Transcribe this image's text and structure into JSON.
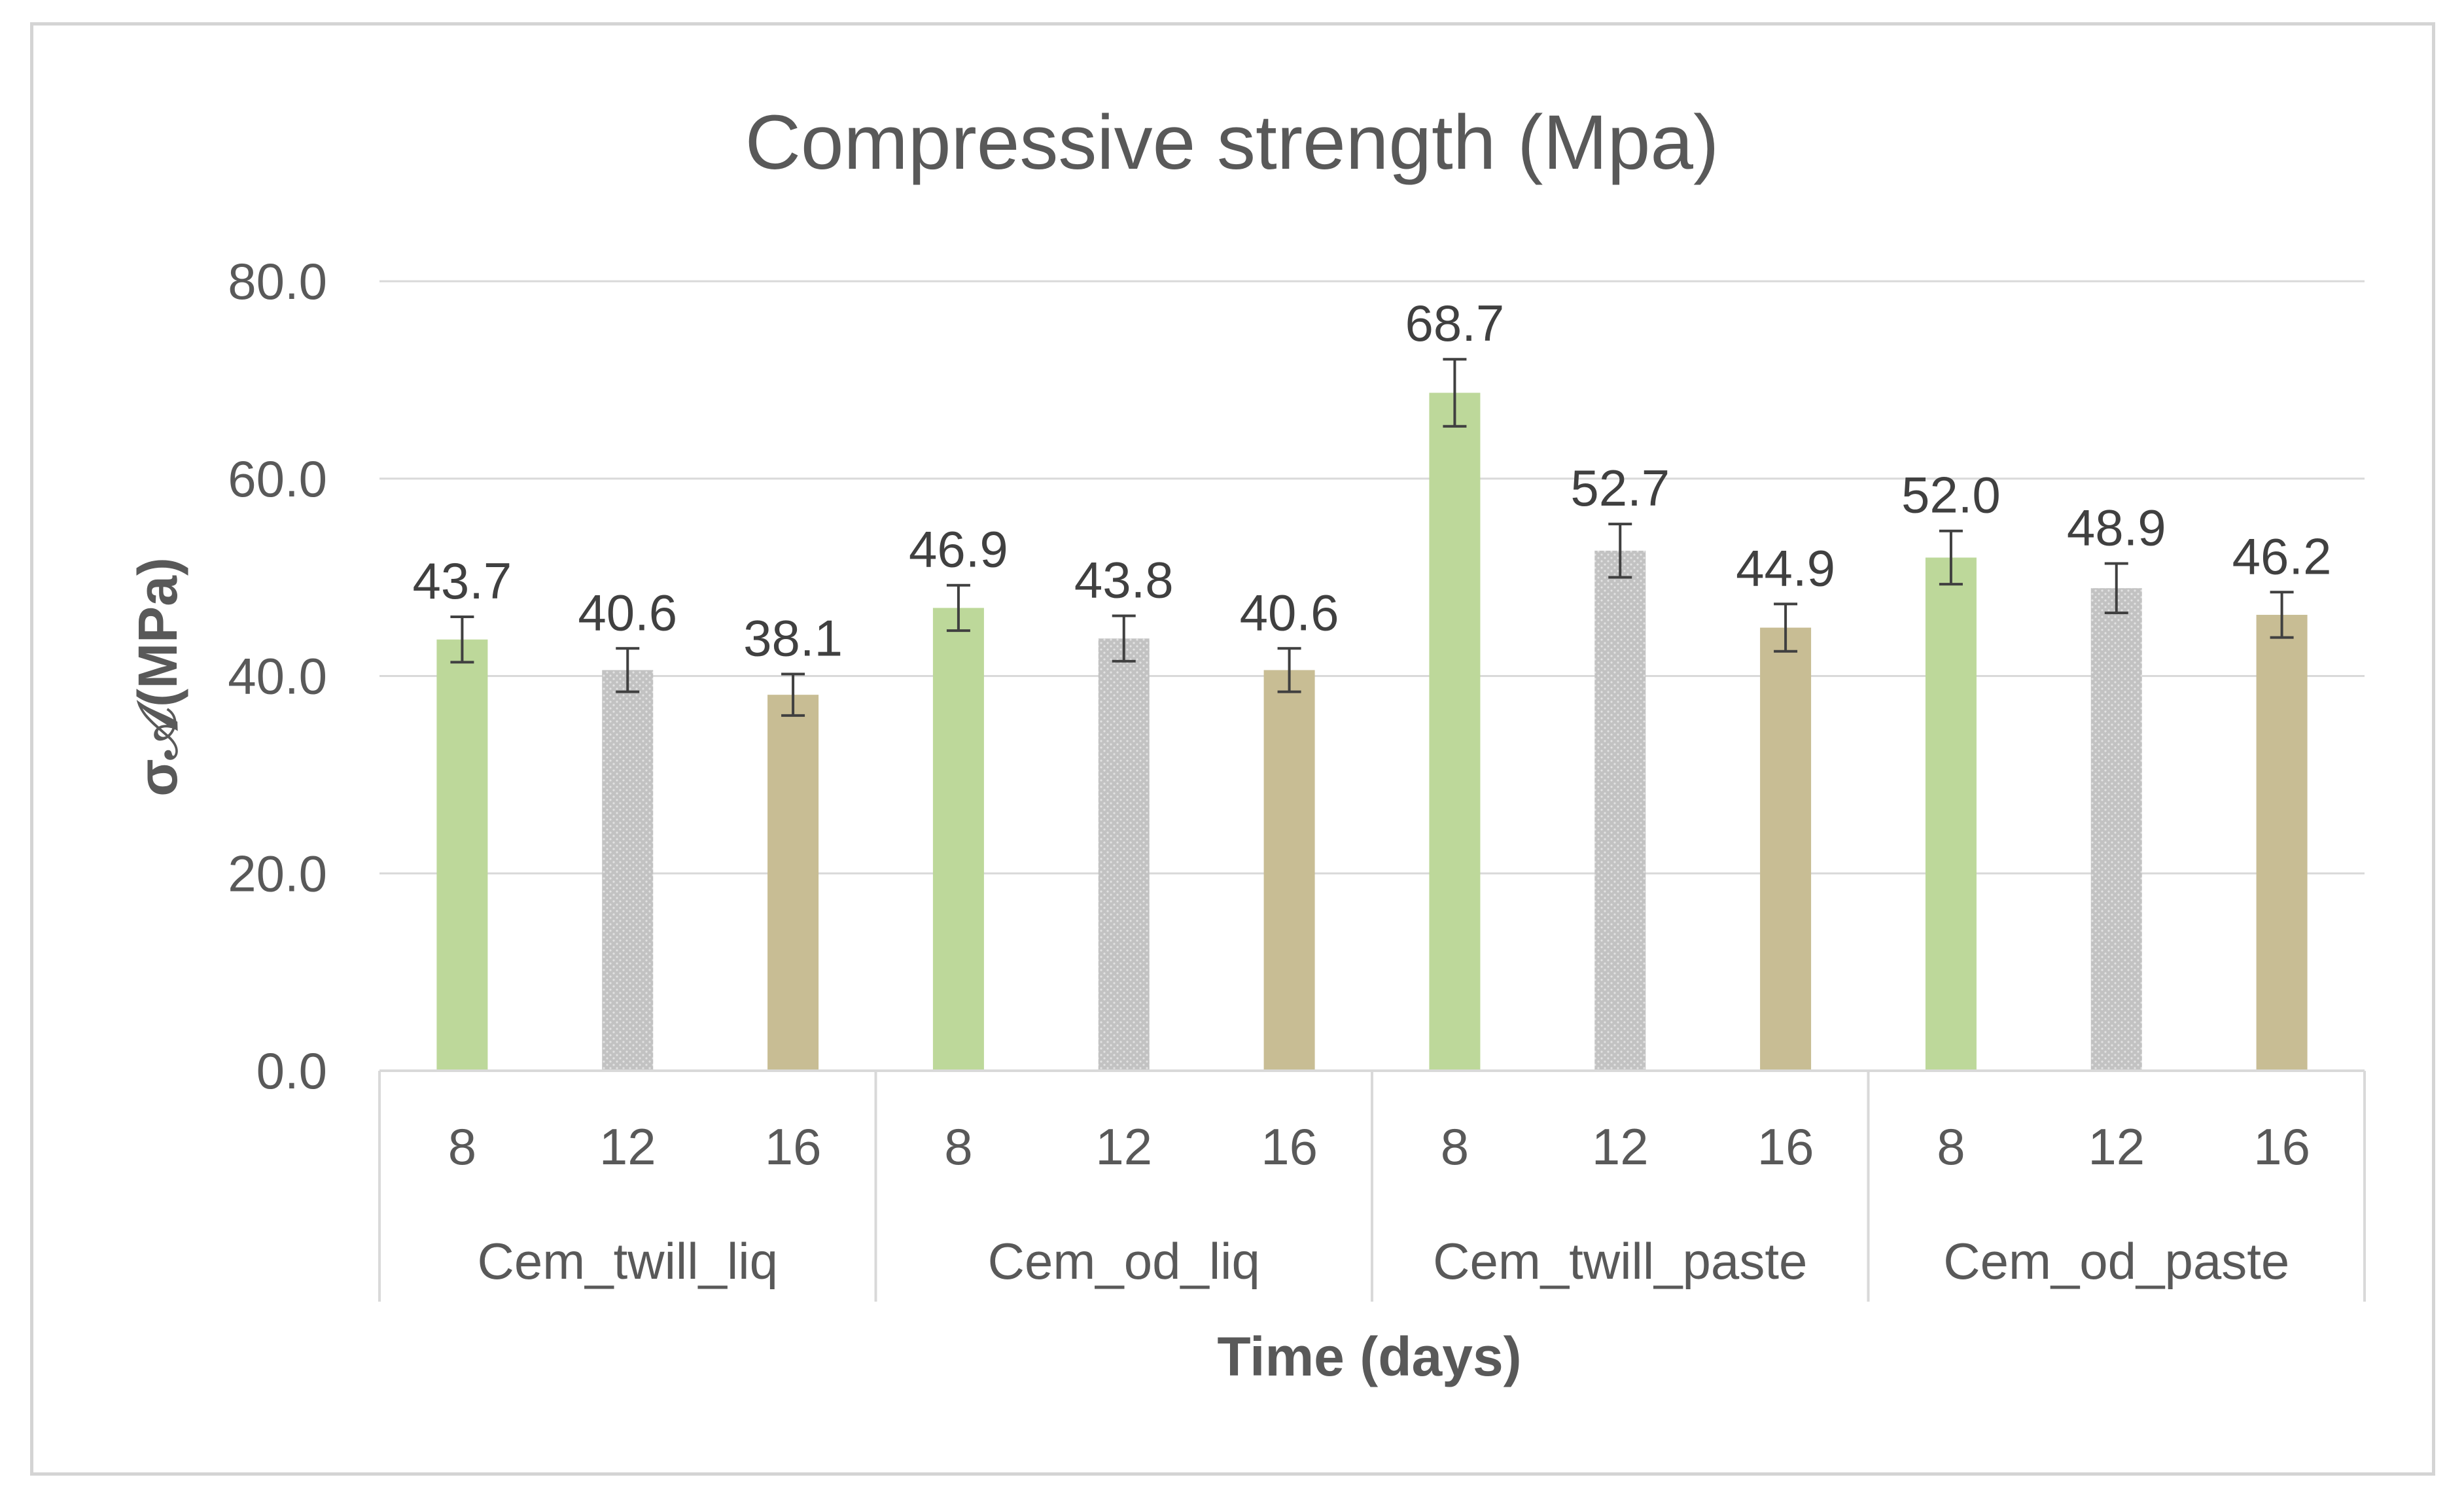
{
  "chart_data": {
    "type": "bar",
    "title": "Compressive strength (Mpa)",
    "xlabel": "Time (days)",
    "ylabel": "σ𝒜(MPa)",
    "ylim": [
      0,
      80
    ],
    "yticks": [
      "0.0",
      "20.0",
      "40.0",
      "60.0",
      "80.0"
    ],
    "grid": true,
    "groups": [
      {
        "name": "Cem_twill_liq",
        "bars": [
          {
            "time": "8",
            "value": 43.7,
            "label": "43.7",
            "err": 2.3
          },
          {
            "time": "12",
            "value": 40.6,
            "label": "40.6",
            "err": 2.2
          },
          {
            "time": "16",
            "value": 38.1,
            "label": "38.1",
            "err": 2.1
          }
        ]
      },
      {
        "name": "Cem_od_liq",
        "bars": [
          {
            "time": "8",
            "value": 46.9,
            "label": "46.9",
            "err": 2.3
          },
          {
            "time": "12",
            "value": 43.8,
            "label": "43.8",
            "err": 2.3
          },
          {
            "time": "16",
            "value": 40.6,
            "label": "40.6",
            "err": 2.2
          }
        ]
      },
      {
        "name": "Cem_twill_paste",
        "bars": [
          {
            "time": "8",
            "value": 68.7,
            "label": "68.7",
            "err": 3.4
          },
          {
            "time": "12",
            "value": 52.7,
            "label": "52.7",
            "err": 2.7
          },
          {
            "time": "16",
            "value": 44.9,
            "label": "44.9",
            "err": 2.4
          }
        ]
      },
      {
        "name": "Cem_od_paste",
        "bars": [
          {
            "time": "8",
            "value": 52.0,
            "label": "52.0",
            "err": 2.7
          },
          {
            "time": "12",
            "value": 48.9,
            "label": "48.9",
            "err": 2.5
          },
          {
            "time": "16",
            "value": 46.2,
            "label": "46.2",
            "err": 2.3
          }
        ]
      }
    ],
    "colors": {
      "8": "#bdd89a",
      "12": "#c4c4c4",
      "16": "#c8bd94"
    }
  }
}
